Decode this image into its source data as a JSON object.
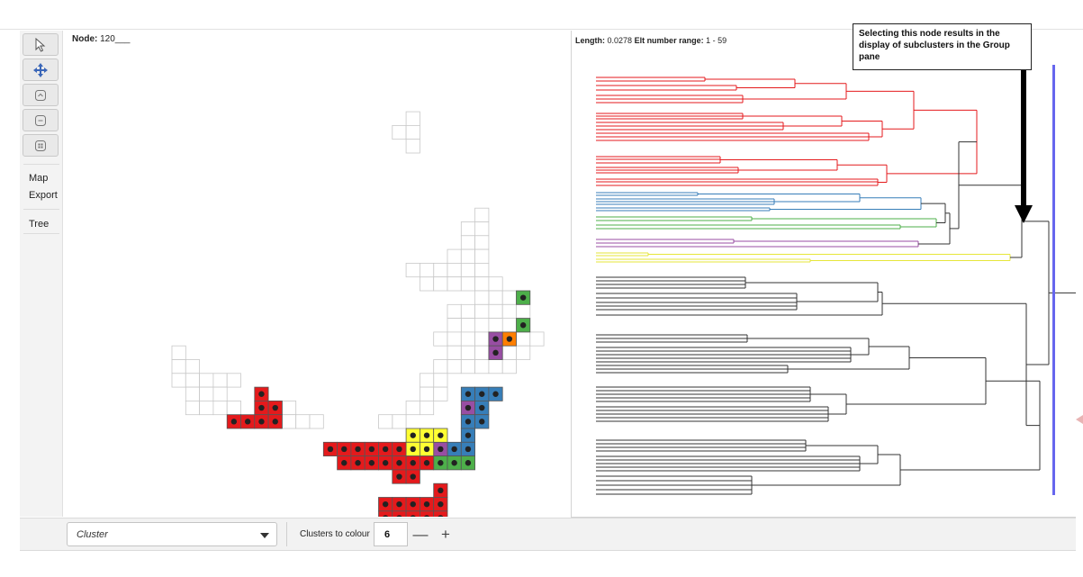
{
  "node": {
    "label": "Node:",
    "value": "120___"
  },
  "tree_header": {
    "length_label": "Length:",
    "length_value": "0.0278",
    "range_label": "Elt number range:",
    "range_value": "1 - 59"
  },
  "callout": {
    "text": "Selecting this node results in the display of subclusters in the Group pane"
  },
  "toolbar": {
    "tools": [
      {
        "name": "select-arrow-icon"
      },
      {
        "name": "move-cross-icon"
      },
      {
        "name": "zoom-in-icon"
      },
      {
        "name": "zoom-out-icon"
      },
      {
        "name": "fit-view-icon"
      }
    ],
    "menu": [
      "Map",
      "Export",
      "Tree"
    ]
  },
  "bottom_bar": {
    "mode": "Cluster",
    "clusters_label": "Clusters to colour",
    "clusters_value": "6",
    "minus": "—",
    "plus": "+"
  },
  "colors": {
    "red": "#e41a1c",
    "blue": "#377eb8",
    "green": "#4daf4a",
    "purple": "#984ea3",
    "orange": "#ff7f00",
    "yellow": "#ffff33",
    "black": "#222222",
    "scale_bar": "#6666ee"
  }
}
